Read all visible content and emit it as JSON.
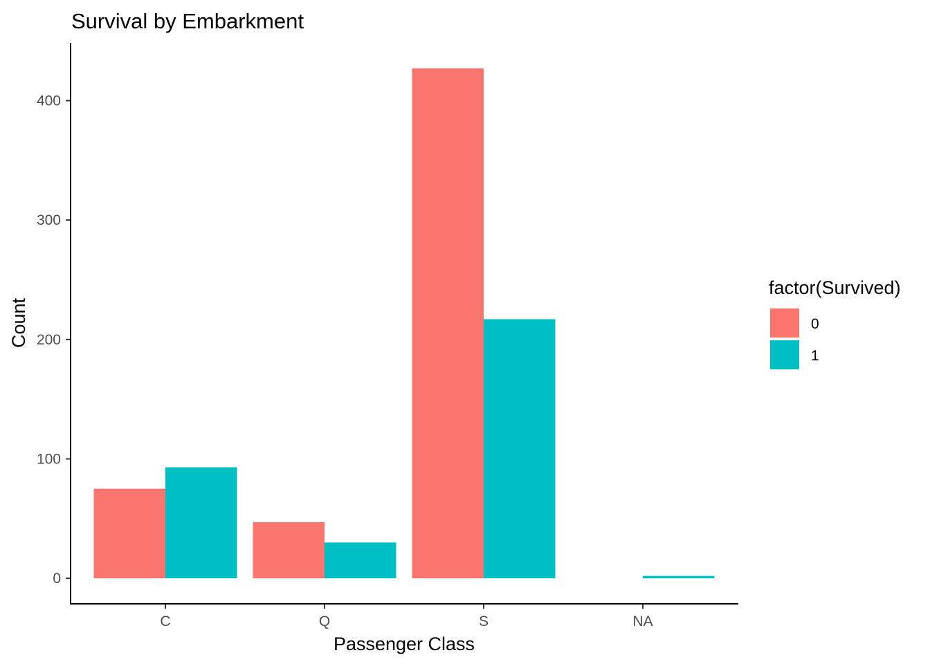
{
  "chart_data": {
    "type": "bar",
    "title": "Survival by Embarkment",
    "xlabel": "Passenger Class",
    "ylabel": "Count",
    "categories": [
      "C",
      "Q",
      "S",
      "NA"
    ],
    "series": [
      {
        "name": "0",
        "values": [
          75,
          47,
          427,
          0
        ],
        "color": "#F8766D"
      },
      {
        "name": "1",
        "values": [
          93,
          30,
          217,
          2
        ],
        "color": "#00BFC4"
      }
    ],
    "yticks": [
      0,
      100,
      200,
      300,
      400
    ],
    "ylim": [
      -21.35,
      448.35
    ],
    "grid": false,
    "legend": {
      "title": "factor(Survived)",
      "position": "right"
    }
  }
}
